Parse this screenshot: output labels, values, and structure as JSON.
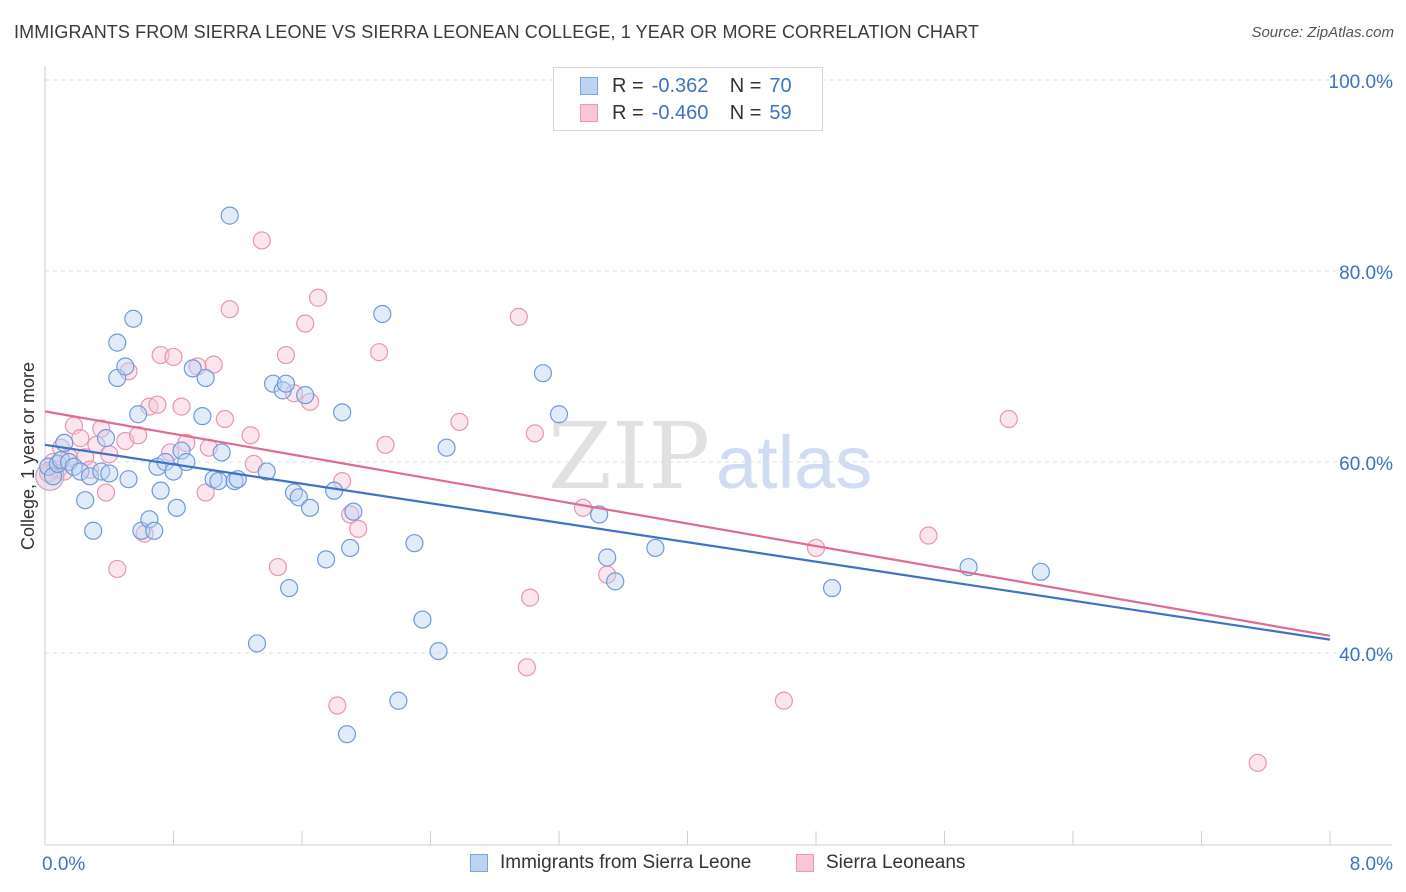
{
  "header": {
    "title": "IMMIGRANTS FROM SIERRA LEONE VS SIERRA LEONEAN COLLEGE, 1 YEAR OR MORE CORRELATION CHART",
    "source": "Source: ZipAtlas.com"
  },
  "legend": {
    "blue": {
      "r_label": "R =",
      "r_value": "-0.362",
      "n_label": "N =",
      "n_value": "70"
    },
    "pink": {
      "r_label": "R =",
      "r_value": "-0.460",
      "n_label": "N =",
      "n_value": "59"
    }
  },
  "watermark": {
    "zip": "ZIP",
    "atlas": "atlas"
  },
  "colors": {
    "blue": "#3d72c4",
    "pink": "#e06b95",
    "blue_fill": "#bcd3f3",
    "pink_fill": "#f8c6d6"
  },
  "chart_data": {
    "type": "scatter",
    "title": "IMMIGRANTS FROM SIERRA LEONE VS SIERRA LEONEAN COLLEGE, 1 YEAR OR MORE CORRELATION CHART",
    "xlabel": "",
    "ylabel": "College, 1 year or more",
    "xlim": [
      0,
      8
    ],
    "ylim": [
      18,
      100
    ],
    "x_tick_labels": [
      "0.0%",
      "8.0%"
    ],
    "y_ticks": [
      40,
      60,
      80,
      100
    ],
    "y_tick_labels": [
      "40.0%",
      "60.0%",
      "80.0%",
      "100.0%"
    ],
    "grid": true,
    "legend_position": "top-center",
    "series": [
      {
        "name": "Immigrants from Sierra Leone",
        "color": "#3d72c4",
        "trend": [
          [
            0,
            61.8
          ],
          [
            8,
            41.4
          ]
        ],
        "points": [
          [
            0.02,
            59.5
          ],
          [
            0.05,
            58.5
          ],
          [
            0.08,
            59.8
          ],
          [
            0.1,
            60.2
          ],
          [
            0.12,
            62
          ],
          [
            0.15,
            60
          ],
          [
            0.18,
            59.5
          ],
          [
            0.22,
            59
          ],
          [
            0.25,
            56
          ],
          [
            0.28,
            58.5
          ],
          [
            0.3,
            52.8
          ],
          [
            0.35,
            59
          ],
          [
            0.38,
            62.5
          ],
          [
            0.4,
            58.8
          ],
          [
            0.45,
            72.5
          ],
          [
            0.45,
            68.8
          ],
          [
            0.5,
            70
          ],
          [
            0.52,
            58.2
          ],
          [
            0.55,
            75
          ],
          [
            0.58,
            65
          ],
          [
            0.6,
            52.8
          ],
          [
            0.65,
            54
          ],
          [
            0.68,
            52.8
          ],
          [
            0.7,
            59.5
          ],
          [
            0.72,
            57
          ],
          [
            0.75,
            60
          ],
          [
            0.8,
            59
          ],
          [
            0.82,
            55.2
          ],
          [
            0.85,
            61.2
          ],
          [
            0.88,
            60
          ],
          [
            0.92,
            69.8
          ],
          [
            0.98,
            64.8
          ],
          [
            1.0,
            68.8
          ],
          [
            1.05,
            58.2
          ],
          [
            1.08,
            58
          ],
          [
            1.1,
            61
          ],
          [
            1.15,
            85.8
          ],
          [
            1.18,
            58
          ],
          [
            1.2,
            58.2
          ],
          [
            1.32,
            41
          ],
          [
            1.38,
            59
          ],
          [
            1.42,
            68.2
          ],
          [
            1.48,
            67.5
          ],
          [
            1.5,
            68.2
          ],
          [
            1.52,
            46.8
          ],
          [
            1.55,
            56.8
          ],
          [
            1.58,
            56.3
          ],
          [
            1.62,
            67
          ],
          [
            1.65,
            55.2
          ],
          [
            1.75,
            49.8
          ],
          [
            1.8,
            57
          ],
          [
            1.85,
            65.2
          ],
          [
            1.88,
            31.5
          ],
          [
            1.9,
            51
          ],
          [
            1.92,
            54.8
          ],
          [
            2.1,
            75.5
          ],
          [
            2.2,
            35
          ],
          [
            2.3,
            51.5
          ],
          [
            2.35,
            43.5
          ],
          [
            2.45,
            40.2
          ],
          [
            2.5,
            61.5
          ],
          [
            3.1,
            69.3
          ],
          [
            3.2,
            65
          ],
          [
            3.45,
            54.5
          ],
          [
            3.5,
            50
          ],
          [
            3.55,
            47.5
          ],
          [
            3.8,
            51
          ],
          [
            4.9,
            46.8
          ],
          [
            5.75,
            49
          ],
          [
            6.2,
            48.5
          ]
        ]
      },
      {
        "name": "Sierra Leoneans",
        "color": "#e06b95",
        "trend": [
          [
            0,
            65.3
          ],
          [
            8,
            41.8
          ]
        ],
        "points": [
          [
            0.02,
            58.8
          ],
          [
            0.05,
            60
          ],
          [
            0.08,
            59.2
          ],
          [
            0.1,
            61.5
          ],
          [
            0.12,
            59
          ],
          [
            0.15,
            60.5
          ],
          [
            0.18,
            63.8
          ],
          [
            0.22,
            62.5
          ],
          [
            0.25,
            60.5
          ],
          [
            0.28,
            59.2
          ],
          [
            0.32,
            61.8
          ],
          [
            0.35,
            63.5
          ],
          [
            0.38,
            56.8
          ],
          [
            0.4,
            60.8
          ],
          [
            0.45,
            48.8
          ],
          [
            0.5,
            62.2
          ],
          [
            0.52,
            69.5
          ],
          [
            0.58,
            62.8
          ],
          [
            0.62,
            52.5
          ],
          [
            0.65,
            65.8
          ],
          [
            0.7,
            66
          ],
          [
            0.72,
            71.2
          ],
          [
            0.78,
            61
          ],
          [
            0.8,
            71
          ],
          [
            0.85,
            65.8
          ],
          [
            0.88,
            62
          ],
          [
            0.95,
            70
          ],
          [
            1.0,
            56.8
          ],
          [
            1.02,
            61.5
          ],
          [
            1.05,
            70.2
          ],
          [
            1.12,
            64.5
          ],
          [
            1.15,
            76
          ],
          [
            1.28,
            62.8
          ],
          [
            1.3,
            59.8
          ],
          [
            1.35,
            83.2
          ],
          [
            1.45,
            49
          ],
          [
            1.5,
            71.2
          ],
          [
            1.55,
            67.2
          ],
          [
            1.62,
            74.5
          ],
          [
            1.65,
            66.3
          ],
          [
            1.7,
            77.2
          ],
          [
            1.82,
            34.5
          ],
          [
            1.85,
            58
          ],
          [
            1.9,
            54.5
          ],
          [
            1.95,
            53
          ],
          [
            2.08,
            71.5
          ],
          [
            2.12,
            61.8
          ],
          [
            2.58,
            64.2
          ],
          [
            2.95,
            75.2
          ],
          [
            3.0,
            38.5
          ],
          [
            3.02,
            45.8
          ],
          [
            3.05,
            63
          ],
          [
            3.35,
            55.2
          ],
          [
            3.5,
            48.2
          ],
          [
            4.6,
            35
          ],
          [
            4.8,
            51
          ],
          [
            5.5,
            52.3
          ],
          [
            6.0,
            64.5
          ],
          [
            7.55,
            28.5
          ]
        ]
      }
    ]
  }
}
